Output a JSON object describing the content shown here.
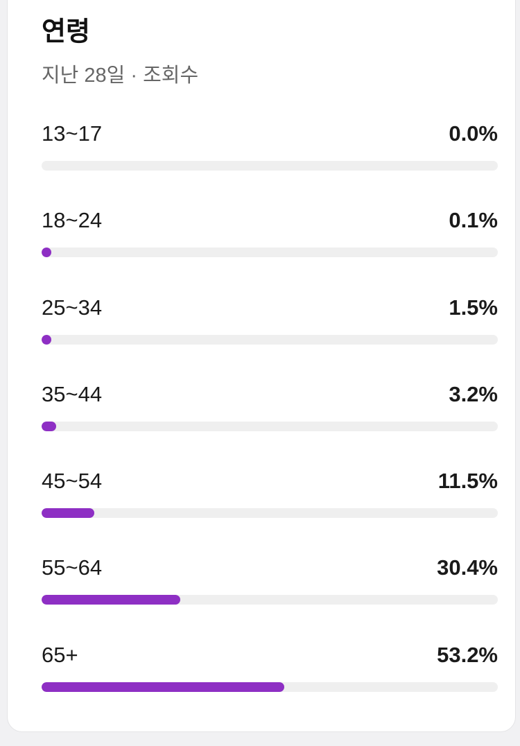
{
  "card": {
    "title": "연령",
    "subtitle": "지난 28일 · 조회수"
  },
  "accent_color": "#8e2fc4",
  "track_color": "#efefef",
  "age_groups": [
    {
      "label": "13~17",
      "value_text": "0.0%",
      "value": 0.0
    },
    {
      "label": "18~24",
      "value_text": "0.1%",
      "value": 0.1
    },
    {
      "label": "25~34",
      "value_text": "1.5%",
      "value": 1.5
    },
    {
      "label": "35~44",
      "value_text": "3.2%",
      "value": 3.2
    },
    {
      "label": "45~54",
      "value_text": "11.5%",
      "value": 11.5
    },
    {
      "label": "55~64",
      "value_text": "30.4%",
      "value": 30.4
    },
    {
      "label": "65+",
      "value_text": "53.2%",
      "value": 53.2
    }
  ]
}
